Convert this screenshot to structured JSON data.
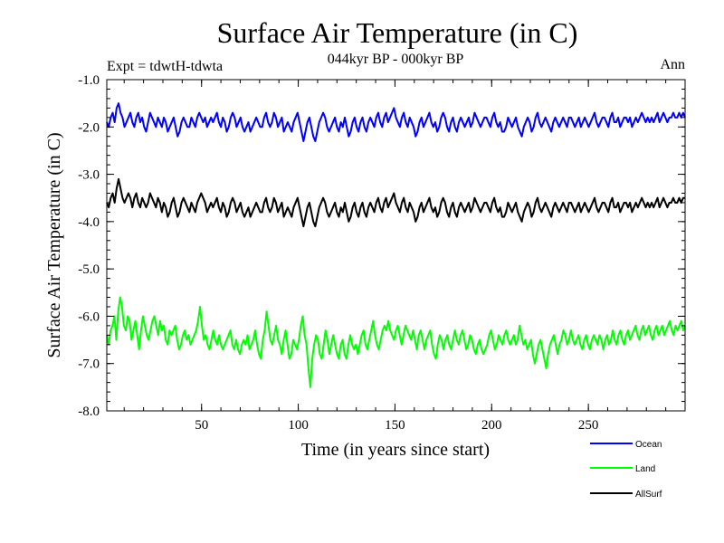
{
  "chart_data": {
    "type": "line",
    "title": "Surface Air Temperature (in C)",
    "subtitle": "044kyr BP - 000kyr BP",
    "experiment_label": "Expt = tdwtH-tdwta",
    "period_label": "Ann",
    "xlabel": "Time (in years since start)",
    "ylabel": "Surface Air Temperature (in C)",
    "xlim": [
      1,
      300
    ],
    "ylim": [
      -8.0,
      -1.0
    ],
    "x_ticks": [
      50,
      100,
      150,
      200,
      250
    ],
    "x_tick_labels": [
      "50",
      "100",
      "150",
      "200",
      "250"
    ],
    "y_ticks": [
      -8.0,
      -7.0,
      -6.0,
      -5.0,
      -4.0,
      -3.0,
      -2.0,
      -1.0
    ],
    "y_tick_labels": [
      "-8.0",
      "-7.0",
      "-6.0",
      "-5.0",
      "-4.0",
      "-3.0",
      "-2.0",
      "-1.0"
    ],
    "grid": false,
    "legend_position": "bottom-right",
    "series": [
      {
        "name": "Ocean",
        "color": "#0000ff",
        "values": [
          -1.9,
          -2.0,
          -1.8,
          -1.7,
          -1.9,
          -1.6,
          -1.5,
          -1.7,
          -1.8,
          -2.0,
          -1.9,
          -1.8,
          -1.7,
          -1.9,
          -2.0,
          -1.8,
          -1.7,
          -1.9,
          -1.8,
          -2.0,
          -2.1,
          -1.9,
          -1.7,
          -1.8,
          -1.9,
          -2.0,
          -1.8,
          -1.9,
          -2.0,
          -1.8,
          -1.9,
          -2.1,
          -2.0,
          -1.9,
          -1.8,
          -2.0,
          -2.2,
          -2.1,
          -1.9,
          -1.8,
          -1.9,
          -2.0,
          -2.0,
          -1.8,
          -1.9,
          -2.0,
          -1.8,
          -1.7,
          -1.8,
          -1.9,
          -1.8,
          -2.0,
          -1.9,
          -1.8,
          -1.9,
          -1.8,
          -1.7,
          -1.9,
          -2.0,
          -1.8,
          -1.9,
          -2.1,
          -2.0,
          -1.8,
          -1.7,
          -1.8,
          -2.0,
          -1.9,
          -1.8,
          -2.0,
          -2.1,
          -2.0,
          -1.9,
          -2.1,
          -2.0,
          -1.9,
          -1.8,
          -1.9,
          -2.0,
          -2.0,
          -1.8,
          -1.7,
          -1.9,
          -2.0,
          -1.9,
          -1.7,
          -1.8,
          -2.0,
          -1.9,
          -1.8,
          -2.1,
          -2.0,
          -1.9,
          -2.0,
          -2.1,
          -1.9,
          -1.8,
          -1.7,
          -1.9,
          -2.1,
          -2.3,
          -2.1,
          -1.9,
          -1.8,
          -2.0,
          -2.2,
          -2.3,
          -2.1,
          -1.9,
          -1.8,
          -1.7,
          -1.8,
          -2.0,
          -2.1,
          -2.0,
          -1.9,
          -1.8,
          -2.0,
          -2.1,
          -1.9,
          -2.0,
          -1.8,
          -2.0,
          -2.2,
          -2.1,
          -1.9,
          -1.8,
          -2.0,
          -2.1,
          -1.9,
          -1.8,
          -2.0,
          -2.1,
          -1.9,
          -1.8,
          -1.9,
          -2.0,
          -1.8,
          -1.7,
          -1.9,
          -2.0,
          -1.8,
          -1.7,
          -1.9,
          -1.8,
          -1.7,
          -1.6,
          -1.8,
          -1.9,
          -2.0,
          -1.8,
          -1.7,
          -1.9,
          -2.0,
          -1.8,
          -1.9,
          -2.0,
          -2.2,
          -2.1,
          -1.9,
          -1.8,
          -2.0,
          -1.9,
          -1.8,
          -1.7,
          -1.9,
          -2.0,
          -1.9,
          -2.1,
          -2.0,
          -1.8,
          -1.7,
          -1.8,
          -2.0,
          -2.1,
          -1.9,
          -1.8,
          -2.0,
          -2.1,
          -1.9,
          -1.8,
          -1.9,
          -2.0,
          -1.9,
          -1.8,
          -2.0,
          -1.9,
          -1.7,
          -1.8,
          -1.9,
          -2.0,
          -1.9,
          -1.8,
          -1.8,
          -1.9,
          -2.0,
          -1.8,
          -1.7,
          -1.9,
          -2.0,
          -1.9,
          -2.1,
          -2.1,
          -2.0,
          -1.8,
          -1.9,
          -2.0,
          -1.9,
          -1.8,
          -2.0,
          -2.1,
          -2.2,
          -2.0,
          -1.9,
          -1.8,
          -1.9,
          -2.1,
          -2.0,
          -1.8,
          -1.7,
          -1.9,
          -2.0,
          -1.9,
          -1.8,
          -1.9,
          -2.0,
          -2.1,
          -1.9,
          -1.8,
          -1.9,
          -2.0,
          -1.9,
          -1.8,
          -1.9,
          -2.0,
          -1.8,
          -1.8,
          -1.9,
          -2.0,
          -1.9,
          -1.8,
          -2.0,
          -1.9,
          -1.8,
          -1.9,
          -2.0,
          -1.9,
          -1.8,
          -1.7,
          -1.9,
          -2.0,
          -1.9,
          -1.8,
          -1.8,
          -1.9,
          -2.0,
          -1.8,
          -1.7,
          -1.9,
          -1.9,
          -1.8,
          -2.0,
          -1.9,
          -1.8,
          -1.8,
          -1.9,
          -1.8,
          -2.0,
          -1.9,
          -1.8,
          -1.9,
          -1.8,
          -1.7,
          -1.8,
          -1.9,
          -1.8,
          -1.9,
          -1.8,
          -1.9,
          -1.8,
          -1.7,
          -1.9,
          -1.8,
          -1.7,
          -1.8,
          -1.9,
          -1.8,
          -1.8,
          -1.7,
          -1.8,
          -1.8,
          -1.7,
          -1.8,
          -1.7,
          -1.8
        ]
      },
      {
        "name": "Land",
        "color": "#00ff00",
        "values": [
          -6.4,
          -6.6,
          -6.3,
          -6.2,
          -6.0,
          -6.5,
          -5.9,
          -5.6,
          -5.8,
          -6.2,
          -6.3,
          -6.0,
          -6.1,
          -6.5,
          -6.3,
          -6.1,
          -6.4,
          -6.7,
          -6.3,
          -6.0,
          -6.2,
          -6.4,
          -6.5,
          -6.3,
          -6.1,
          -6.0,
          -6.2,
          -6.4,
          -6.1,
          -6.3,
          -6.2,
          -6.5,
          -6.6,
          -6.3,
          -6.4,
          -6.3,
          -6.2,
          -6.5,
          -6.7,
          -6.6,
          -6.4,
          -6.3,
          -6.5,
          -6.4,
          -6.6,
          -6.5,
          -6.4,
          -6.3,
          -6.1,
          -5.8,
          -6.2,
          -6.5,
          -6.4,
          -6.6,
          -6.7,
          -6.5,
          -6.3,
          -6.5,
          -6.6,
          -6.4,
          -6.6,
          -6.7,
          -6.6,
          -6.5,
          -6.4,
          -6.3,
          -6.6,
          -6.7,
          -6.5,
          -6.7,
          -6.8,
          -6.6,
          -6.5,
          -6.6,
          -6.4,
          -6.7,
          -6.6,
          -6.5,
          -6.3,
          -6.6,
          -6.8,
          -6.9,
          -6.5,
          -6.3,
          -5.9,
          -6.2,
          -6.5,
          -6.6,
          -6.4,
          -6.2,
          -6.5,
          -6.6,
          -6.8,
          -6.5,
          -6.3,
          -6.6,
          -6.9,
          -6.8,
          -6.5,
          -6.6,
          -6.7,
          -6.5,
          -6.2,
          -6.0,
          -6.4,
          -6.6,
          -7.1,
          -7.5,
          -6.9,
          -6.6,
          -6.4,
          -6.5,
          -6.8,
          -6.9,
          -6.6,
          -6.3,
          -6.5,
          -6.8,
          -6.6,
          -6.4,
          -6.6,
          -6.8,
          -6.9,
          -6.6,
          -6.5,
          -6.8,
          -6.9,
          -6.6,
          -6.4,
          -6.6,
          -6.7,
          -6.6,
          -6.8,
          -6.6,
          -6.4,
          -6.3,
          -6.6,
          -6.7,
          -6.5,
          -6.3,
          -6.1,
          -6.4,
          -6.6,
          -6.7,
          -6.5,
          -6.3,
          -6.2,
          -6.3,
          -6.1,
          -6.3,
          -6.4,
          -6.5,
          -6.3,
          -6.2,
          -6.4,
          -6.6,
          -6.4,
          -6.2,
          -6.3,
          -6.4,
          -6.5,
          -6.3,
          -6.5,
          -6.7,
          -6.4,
          -6.3,
          -6.5,
          -6.7,
          -6.5,
          -6.4,
          -6.3,
          -6.6,
          -6.8,
          -6.9,
          -6.6,
          -6.4,
          -6.5,
          -6.7,
          -6.5,
          -6.4,
          -6.6,
          -6.7,
          -6.5,
          -6.3,
          -6.5,
          -6.6,
          -6.4,
          -6.3,
          -6.5,
          -6.7,
          -6.6,
          -6.4,
          -6.5,
          -6.7,
          -6.8,
          -6.6,
          -6.5,
          -6.7,
          -6.8,
          -6.7,
          -6.6,
          -6.4,
          -6.3,
          -6.5,
          -6.7,
          -6.6,
          -6.4,
          -6.5,
          -6.6,
          -6.4,
          -6.3,
          -6.5,
          -6.6,
          -6.5,
          -6.4,
          -6.6,
          -6.5,
          -6.2,
          -6.4,
          -6.6,
          -6.5,
          -6.7,
          -6.6,
          -6.5,
          -6.8,
          -7.0,
          -6.8,
          -6.6,
          -6.5,
          -6.7,
          -6.9,
          -7.1,
          -6.8,
          -6.6,
          -6.5,
          -6.4,
          -6.6,
          -6.8,
          -6.6,
          -6.5,
          -6.3,
          -6.4,
          -6.6,
          -6.5,
          -6.3,
          -6.5,
          -6.6,
          -6.5,
          -6.4,
          -6.6,
          -6.7,
          -6.5,
          -6.4,
          -6.6,
          -6.7,
          -6.5,
          -6.4,
          -6.5,
          -6.6,
          -6.4,
          -6.5,
          -6.7,
          -6.5,
          -6.4,
          -6.6,
          -6.5,
          -6.3,
          -6.5,
          -6.6,
          -6.4,
          -6.3,
          -6.5,
          -6.6,
          -6.4,
          -6.3,
          -6.5,
          -6.4,
          -6.3,
          -6.2,
          -6.4,
          -6.5,
          -6.3,
          -6.2,
          -6.4,
          -6.3,
          -6.2,
          -6.4,
          -6.5,
          -6.3,
          -6.2,
          -6.4,
          -6.3,
          -6.2,
          -6.4,
          -6.3,
          -6.2,
          -6.1,
          -6.3,
          -6.4,
          -6.2,
          -6.3,
          -6.2,
          -6.1,
          -6.3,
          -6.2
        ]
      },
      {
        "name": "AllSurf",
        "color": "#000000",
        "values": [
          -3.6,
          -3.7,
          -3.5,
          -3.4,
          -3.6,
          -3.3,
          -3.1,
          -3.3,
          -3.5,
          -3.6,
          -3.5,
          -3.4,
          -3.5,
          -3.7,
          -3.5,
          -3.4,
          -3.6,
          -3.7,
          -3.5,
          -3.6,
          -3.7,
          -3.6,
          -3.4,
          -3.5,
          -3.6,
          -3.7,
          -3.5,
          -3.6,
          -3.8,
          -3.6,
          -3.7,
          -3.9,
          -3.8,
          -3.6,
          -3.5,
          -3.7,
          -3.9,
          -3.8,
          -3.6,
          -3.5,
          -3.6,
          -3.7,
          -3.8,
          -3.6,
          -3.7,
          -3.8,
          -3.6,
          -3.5,
          -3.4,
          -3.5,
          -3.6,
          -3.8,
          -3.7,
          -3.6,
          -3.7,
          -3.6,
          -3.5,
          -3.7,
          -3.8,
          -3.6,
          -3.7,
          -3.9,
          -3.8,
          -3.6,
          -3.5,
          -3.6,
          -3.8,
          -3.7,
          -3.6,
          -3.8,
          -3.9,
          -3.8,
          -3.7,
          -3.9,
          -3.8,
          -3.7,
          -3.6,
          -3.7,
          -3.8,
          -3.8,
          -3.6,
          -3.5,
          -3.7,
          -3.8,
          -3.7,
          -3.5,
          -3.6,
          -3.8,
          -3.7,
          -3.6,
          -3.9,
          -3.8,
          -3.7,
          -3.8,
          -3.9,
          -3.7,
          -3.6,
          -3.5,
          -3.7,
          -3.9,
          -4.1,
          -3.9,
          -3.7,
          -3.6,
          -3.8,
          -4.0,
          -4.1,
          -3.9,
          -3.7,
          -3.6,
          -3.5,
          -3.6,
          -3.8,
          -3.9,
          -3.8,
          -3.7,
          -3.6,
          -3.8,
          -3.9,
          -3.7,
          -3.8,
          -3.6,
          -3.8,
          -4.0,
          -3.9,
          -3.7,
          -3.6,
          -3.8,
          -3.9,
          -3.7,
          -3.6,
          -3.8,
          -3.9,
          -3.7,
          -3.6,
          -3.7,
          -3.8,
          -3.6,
          -3.5,
          -3.7,
          -3.8,
          -3.6,
          -3.5,
          -3.7,
          -3.6,
          -3.5,
          -3.4,
          -3.6,
          -3.7,
          -3.8,
          -3.6,
          -3.5,
          -3.7,
          -3.8,
          -3.6,
          -3.7,
          -3.8,
          -4.0,
          -3.9,
          -3.7,
          -3.6,
          -3.8,
          -3.7,
          -3.6,
          -3.5,
          -3.7,
          -3.8,
          -3.7,
          -3.9,
          -3.8,
          -3.6,
          -3.5,
          -3.6,
          -3.8,
          -3.9,
          -3.7,
          -3.6,
          -3.8,
          -3.9,
          -3.7,
          -3.6,
          -3.7,
          -3.8,
          -3.7,
          -3.6,
          -3.8,
          -3.7,
          -3.5,
          -3.6,
          -3.7,
          -3.8,
          -3.7,
          -3.6,
          -3.6,
          -3.7,
          -3.8,
          -3.6,
          -3.5,
          -3.7,
          -3.8,
          -3.7,
          -3.9,
          -3.9,
          -3.8,
          -3.6,
          -3.7,
          -3.8,
          -3.7,
          -3.6,
          -3.8,
          -3.9,
          -4.0,
          -3.8,
          -3.7,
          -3.6,
          -3.7,
          -3.9,
          -3.8,
          -3.6,
          -3.5,
          -3.7,
          -3.8,
          -3.7,
          -3.6,
          -3.7,
          -3.8,
          -3.9,
          -3.7,
          -3.6,
          -3.7,
          -3.8,
          -3.7,
          -3.6,
          -3.7,
          -3.8,
          -3.6,
          -3.6,
          -3.7,
          -3.8,
          -3.7,
          -3.6,
          -3.8,
          -3.7,
          -3.6,
          -3.7,
          -3.8,
          -3.7,
          -3.6,
          -3.5,
          -3.7,
          -3.8,
          -3.7,
          -3.6,
          -3.6,
          -3.7,
          -3.8,
          -3.6,
          -3.5,
          -3.7,
          -3.7,
          -3.6,
          -3.8,
          -3.7,
          -3.6,
          -3.6,
          -3.7,
          -3.6,
          -3.8,
          -3.7,
          -3.6,
          -3.7,
          -3.6,
          -3.5,
          -3.6,
          -3.7,
          -3.6,
          -3.7,
          -3.6,
          -3.7,
          -3.6,
          -3.5,
          -3.7,
          -3.6,
          -3.5,
          -3.6,
          -3.7,
          -3.6,
          -3.6,
          -3.5,
          -3.6,
          -3.6,
          -3.5,
          -3.6,
          -3.5,
          -3.5
        ]
      }
    ]
  }
}
